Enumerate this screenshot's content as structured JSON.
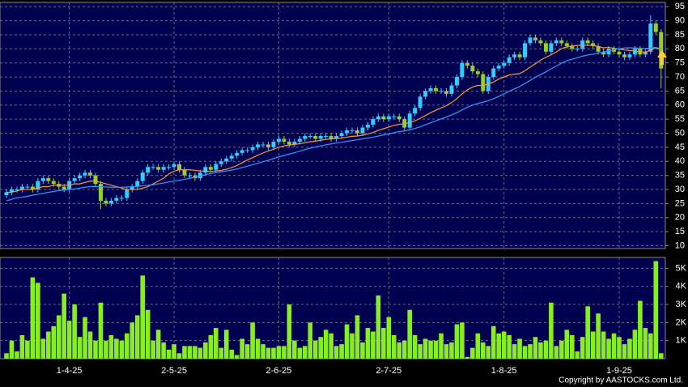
{
  "chart_data": [
    {
      "type": "candlestick",
      "categories": [
        null,
        null,
        null,
        null,
        null,
        null,
        null,
        null,
        null,
        null,
        null,
        null,
        "1-4-25",
        null,
        null,
        null,
        null,
        null,
        null,
        null,
        null,
        null,
        null,
        null,
        null,
        null,
        null,
        null,
        null,
        null,
        null,
        null,
        "2-5-25",
        null,
        null,
        null,
        null,
        null,
        null,
        null,
        null,
        null,
        null,
        null,
        null,
        null,
        null,
        null,
        null,
        null,
        null,
        null,
        "2-6-25",
        null,
        null,
        null,
        null,
        null,
        null,
        null,
        null,
        null,
        null,
        null,
        null,
        null,
        null,
        null,
        null,
        null,
        null,
        null,
        null,
        "2-7-25",
        null,
        null,
        null,
        null,
        null,
        null,
        null,
        null,
        null,
        null,
        null,
        null,
        null,
        null,
        null,
        null,
        null,
        null,
        null,
        null,
        null,
        "1-8-25",
        null,
        null,
        null,
        null,
        null,
        null,
        null,
        null,
        null,
        null,
        null,
        null,
        null,
        null,
        null,
        null,
        null,
        null,
        null,
        null,
        null,
        "1-9-25",
        null,
        null,
        null,
        null,
        null,
        null,
        null,
        null
      ],
      "open": [
        28,
        29,
        30,
        30,
        31,
        31,
        30,
        33,
        34,
        33,
        32,
        31,
        30,
        33,
        34,
        35,
        36,
        35,
        32,
        26,
        25,
        26,
        27,
        27,
        30,
        31,
        33,
        36,
        38,
        38,
        37,
        38,
        38,
        39,
        37,
        35,
        35,
        34,
        36,
        38,
        37,
        39,
        40,
        41,
        42,
        43,
        44,
        44,
        45,
        46,
        46,
        45,
        47,
        48,
        47,
        46,
        47,
        48,
        49,
        49,
        48,
        49,
        49,
        48,
        49,
        50,
        51,
        51,
        50,
        52,
        53,
        55,
        56,
        55,
        56,
        56,
        55,
        52,
        57,
        59,
        63,
        65,
        66,
        65,
        65,
        64,
        67,
        70,
        75,
        74,
        72,
        71,
        65,
        70,
        73,
        74,
        75,
        77,
        78,
        77,
        82,
        84,
        83,
        82,
        79,
        82,
        83,
        82,
        81,
        80,
        80,
        83,
        82,
        81,
        79,
        78,
        80,
        79,
        78,
        77,
        78,
        80,
        78,
        79,
        89,
        86
      ],
      "high": [
        30,
        31,
        31,
        32,
        32,
        32,
        34,
        35,
        35,
        34,
        33,
        32,
        34,
        35,
        36,
        37,
        37,
        36,
        33,
        27,
        27,
        28,
        28,
        31,
        32,
        34,
        37,
        39,
        39,
        39,
        39,
        39,
        40,
        40,
        38,
        36,
        36,
        37,
        39,
        39,
        40,
        41,
        42,
        43,
        44,
        45,
        45,
        46,
        47,
        47,
        47,
        48,
        49,
        49,
        48,
        48,
        49,
        50,
        50,
        50,
        50,
        50,
        50,
        50,
        51,
        52,
        52,
        52,
        53,
        54,
        56,
        57,
        57,
        57,
        57,
        57,
        56,
        58,
        60,
        64,
        66,
        67,
        67,
        66,
        66,
        68,
        71,
        76,
        76,
        75,
        73,
        72,
        71,
        74,
        75,
        76,
        78,
        79,
        79,
        83,
        85,
        85,
        84,
        83,
        83,
        84,
        84,
        83,
        82,
        81,
        84,
        84,
        83,
        82,
        80,
        81,
        81,
        80,
        79,
        79,
        81,
        81,
        80,
        92,
        90,
        87
      ],
      "low": [
        27,
        28,
        29,
        29,
        30,
        29,
        29,
        32,
        32,
        31,
        30,
        29,
        29,
        32,
        33,
        34,
        34,
        31,
        23,
        24,
        24,
        25,
        26,
        26,
        29,
        30,
        32,
        35,
        37,
        36,
        36,
        37,
        37,
        36,
        34,
        34,
        33,
        33,
        35,
        36,
        36,
        38,
        39,
        40,
        41,
        42,
        43,
        43,
        44,
        45,
        44,
        44,
        46,
        46,
        45,
        45,
        46,
        47,
        48,
        47,
        47,
        48,
        47,
        47,
        48,
        49,
        50,
        49,
        49,
        51,
        52,
        54,
        54,
        54,
        55,
        54,
        51,
        51,
        56,
        58,
        62,
        64,
        64,
        64,
        63,
        63,
        66,
        69,
        73,
        71,
        70,
        64,
        64,
        69,
        72,
        73,
        74,
        76,
        76,
        76,
        81,
        82,
        81,
        78,
        78,
        81,
        81,
        80,
        79,
        79,
        79,
        81,
        80,
        78,
        77,
        77,
        78,
        77,
        76,
        76,
        77,
        77,
        77,
        78,
        85,
        66
      ],
      "close": [
        29,
        30,
        30,
        31,
        31,
        30,
        33,
        34,
        33,
        32,
        31,
        30,
        33,
        34,
        35,
        36,
        35,
        32,
        26,
        25,
        26,
        27,
        27,
        30,
        31,
        33,
        36,
        38,
        38,
        37,
        38,
        38,
        39,
        37,
        35,
        35,
        34,
        36,
        38,
        37,
        39,
        40,
        41,
        42,
        43,
        44,
        44,
        45,
        46,
        46,
        45,
        47,
        48,
        47,
        46,
        47,
        48,
        49,
        49,
        48,
        49,
        49,
        48,
        49,
        50,
        51,
        51,
        50,
        52,
        53,
        55,
        56,
        55,
        56,
        56,
        55,
        52,
        57,
        59,
        63,
        65,
        66,
        65,
        65,
        64,
        67,
        70,
        75,
        74,
        72,
        71,
        65,
        70,
        73,
        74,
        75,
        77,
        78,
        77,
        82,
        84,
        83,
        82,
        79,
        82,
        83,
        82,
        81,
        80,
        80,
        83,
        82,
        81,
        79,
        78,
        80,
        79,
        78,
        77,
        78,
        80,
        78,
        79,
        89,
        86,
        73
      ],
      "up_color": "#33ccff",
      "down_color": "#99cc33",
      "series": [
        {
          "color": "#ff9933",
          "values": [
            29,
            29,
            29.5,
            30,
            30,
            30,
            30.5,
            31,
            31,
            31.5,
            31.5,
            31.5,
            31.5,
            32,
            32,
            32.5,
            33,
            33,
            32.5,
            32,
            31.5,
            31,
            30.5,
            30,
            30,
            30,
            30.5,
            31,
            32,
            33,
            34,
            35.5,
            36.5,
            37,
            37,
            37,
            36.8,
            36.6,
            36.5,
            36.4,
            36.6,
            36.8,
            37.2,
            37.8,
            38.5,
            39.5,
            40.5,
            41.3,
            42.2,
            43,
            43.7,
            44.3,
            45,
            45.5,
            45.8,
            46,
            46.3,
            46.6,
            47,
            47.2,
            47.5,
            47.8,
            48,
            48.1,
            48.3,
            48.6,
            48.9,
            49,
            49.3,
            49.7,
            50.3,
            51,
            51.6,
            52.2,
            52.8,
            53.2,
            53.3,
            53.8,
            54.4,
            55.3,
            56.3,
            57.3,
            58.2,
            59,
            59.8,
            60.9,
            62.3,
            64,
            65.4,
            66.4,
            67,
            67,
            67.5,
            68.2,
            69.2,
            70,
            70.7,
            71,
            71.2,
            72.2,
            73.5,
            74.7,
            76,
            77,
            77.9,
            78.9,
            80.1,
            80.7,
            81,
            81.2,
            81.3,
            81.3,
            81.2,
            80.8,
            80.4,
            80.5,
            80.2,
            79.9,
            79.6,
            79.4,
            79.2,
            79,
            78.8,
            79.6,
            80.4,
            79.7
          ]
        },
        {
          "color": "#3399ff",
          "values": [
            26,
            26.5,
            27,
            27.3,
            27.6,
            28,
            28.3,
            28.6,
            29,
            29.3,
            29.6,
            29.8,
            30,
            30.2,
            30.5,
            30.8,
            31,
            31.1,
            31,
            30.9,
            30.8,
            30.8,
            30.8,
            30.9,
            31,
            31.1,
            31.3,
            31.5,
            31.7,
            32,
            32.3,
            32.7,
            33,
            33.3,
            33.6,
            34,
            34.3,
            34.7,
            35.3,
            35.7,
            36,
            36.3,
            36.6,
            36.9,
            37.3,
            37.8,
            38.3,
            38.8,
            39.3,
            39.9,
            40.4,
            41,
            41.6,
            42.1,
            42.6,
            43.1,
            43.6,
            44.2,
            44.7,
            45.1,
            45.5,
            45.9,
            46.2,
            46.5,
            46.8,
            47.1,
            47.4,
            47.7,
            48,
            48.3,
            48.6,
            49,
            49.4,
            49.8,
            50.2,
            50.6,
            50.8,
            51.2,
            51.7,
            52.3,
            53,
            53.7,
            54.4,
            55.1,
            55.8,
            56.5,
            57.3,
            58.3,
            59.2,
            60,
            60.6,
            61,
            61.6,
            62.3,
            63.1,
            64,
            64.9,
            65.8,
            66.6,
            67.7,
            68.8,
            69.9,
            70.9,
            71.8,
            72.9,
            73.9,
            74.9,
            75.8,
            76.3,
            76.8,
            77.4,
            77.8,
            78.1,
            78.5,
            78.9,
            79.3,
            79.7,
            80,
            80.3,
            80.4,
            80.3,
            80.2,
            80.1,
            80.3,
            80.5,
            80.1
          ]
        }
      ],
      "ylim": [
        9,
        96.5
      ],
      "yticks": [
        10,
        15,
        20,
        25,
        30,
        35,
        40,
        45,
        50,
        55,
        60,
        65,
        70,
        75,
        80,
        85,
        90,
        95
      ],
      "grid": true
    },
    {
      "type": "bar",
      "values": [
        0.3,
        1,
        0.4,
        1.3,
        1,
        4.5,
        4.2,
        1.1,
        1.5,
        1.8,
        2.4,
        3.6,
        2.1,
        3,
        1.2,
        2.3,
        1.5,
        1,
        3.1,
        1,
        1.3,
        1.1,
        1,
        1.4,
        2,
        2.4,
        4.6,
        2.7,
        1,
        1.6,
        0.9,
        0.5,
        0.8,
        0.3,
        0.7,
        0.7,
        0.7,
        0.6,
        0.9,
        1.3,
        1.7,
        0.6,
        1.6,
        0.5,
        0.2,
        1.1,
        0.8,
        2,
        1.1,
        0.8,
        0.6,
        0.6,
        0.7,
        0.7,
        3,
        1,
        0.6,
        0.7,
        2,
        1,
        1.2,
        1.6,
        1.4,
        0.7,
        0.8,
        1.9,
        1.4,
        2.4,
        0.9,
        1.7,
        1.5,
        3.5,
        1.7,
        2.3,
        1.3,
        0.9,
        1,
        2.7,
        1.3,
        0.8,
        1.1,
        1,
        1,
        1.4,
        0.8,
        0.9,
        1.9,
        2,
        0.1,
        0.6,
        1.4,
        0.9,
        0.7,
        1.8,
        1.4,
        1.5,
        1.3,
        0.8,
        1.1,
        0.7,
        0.8,
        1.2,
        0.9,
        1,
        3.1,
        0.7,
        1,
        1.6,
        1.3,
        0.4,
        1.2,
        2.9,
        1.5,
        2.5,
        1.5,
        1.1,
        1.4,
        1.2,
        0.8,
        1.1,
        1.6,
        3.2,
        1.7,
        1.4,
        5.4,
        0.3
      ],
      "color": "#88ee22",
      "ylim": [
        0,
        5.6
      ],
      "yticks": [
        {
          "value": 1,
          "label": "1K"
        },
        {
          "value": 2,
          "label": "2K"
        },
        {
          "value": 3,
          "label": "3K"
        },
        {
          "value": 4,
          "label": "4K"
        },
        {
          "value": 5,
          "label": "5K"
        }
      ],
      "grid": true
    }
  ],
  "footer": "Copyright by AASTOCKS.com Ltd."
}
